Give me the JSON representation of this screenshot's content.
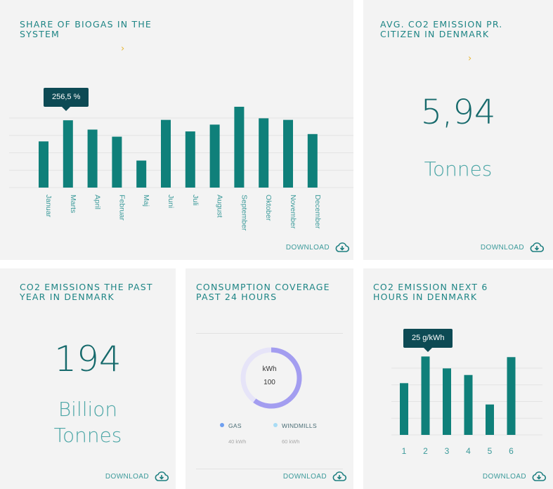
{
  "cards": {
    "biogas": {
      "title": "SHARE OF BIOGAS IN THE SYSTEM",
      "tooltip": "256,5 %",
      "download": "DOWNLOAD"
    },
    "avg_co2": {
      "title": "AVG. CO2 EMISSION PR. CITIZEN IN DENMARK",
      "value": "5,94",
      "unit": "Tonnes",
      "download": "DOWNLOAD"
    },
    "co2_past": {
      "title": "CO2 EMISSIONS THE PAST YEAR IN DENMARK",
      "value": "194",
      "unit_line1": "Billion",
      "unit_line2": "Tonnes",
      "download": "DOWNLOAD"
    },
    "consumption": {
      "title": "CONSUMPTION COVERAGE PAST 24 HOURS",
      "center_label": "kWh",
      "center_value": "100",
      "legend": [
        {
          "label": "GAS",
          "value": "40 kWh",
          "color": "#6e9ff0"
        },
        {
          "label": "WINDMILLS",
          "value": "60 kWh",
          "color": "#a8dcf5"
        }
      ],
      "download": "DOWNLOAD"
    },
    "co2_next": {
      "title": "CO2 EMISSION NEXT 6 HOURS IN DENMARK",
      "tooltip": "25 g/kWh",
      "download": "DOWNLOAD"
    }
  },
  "colors": {
    "bar": "#0f807a",
    "title": "#1e8585",
    "accent": "#e8b531",
    "tooltip": "#0d4a54",
    "ring_main": "#a39df0",
    "ring_track": "#e6e4f8"
  },
  "chart_data": [
    {
      "type": "bar",
      "categories": [
        "Januar",
        "Marts",
        "April",
        "Februar",
        "Maj",
        "Juni",
        "Juli",
        "August",
        "September",
        "Oktober",
        "November",
        "December"
      ],
      "values": [
        176,
        256.5,
        221,
        194,
        103,
        258,
        214,
        240,
        308,
        264,
        258,
        204
      ],
      "ylim": [
        0,
        340
      ],
      "grid": true
    },
    {
      "type": "pie",
      "labels": [
        "GAS",
        "WINDMILLS"
      ],
      "values": [
        40,
        60
      ]
    },
    {
      "type": "bar",
      "categories": [
        "1",
        "2",
        "3",
        "4",
        "5",
        "6"
      ],
      "values": [
        16.5,
        25,
        21.2,
        19.1,
        9.7,
        24.8
      ],
      "ylim": [
        0,
        28
      ],
      "grid": true
    }
  ]
}
